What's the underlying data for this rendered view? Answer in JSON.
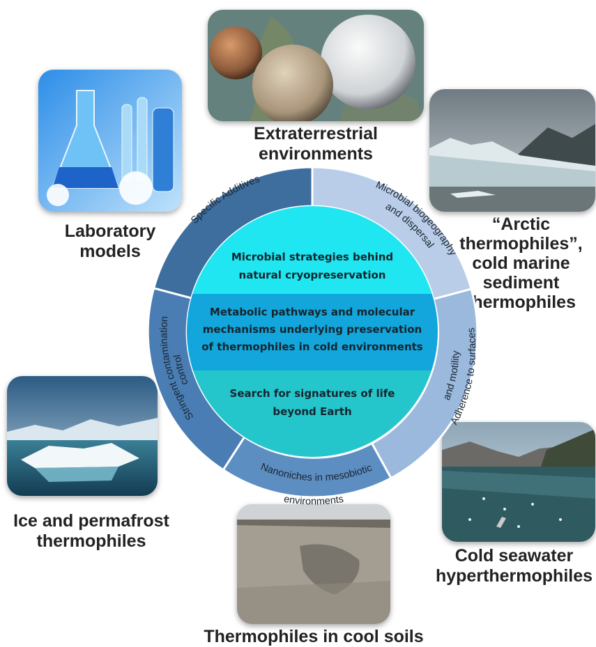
{
  "captions": {
    "extraterrestrial": [
      "Extraterrestrial",
      "environments"
    ],
    "laboratory": [
      "Laboratory",
      "models"
    ],
    "arctic": [
      "“Arctic",
      "thermophiles”,",
      "cold marine",
      "sediment",
      "thermophiles"
    ],
    "ice": [
      "Ice and permafrost",
      "thermophiles"
    ],
    "seawater": [
      "Cold seawater",
      "hyperthermophiles"
    ],
    "soils": [
      "Thermophiles in cool soils"
    ]
  },
  "ring_segments": {
    "specific_additives": [
      "Specific Additives"
    ],
    "biogeography": [
      "Microbial biogeography",
      "and dispersal"
    ],
    "adherence": [
      "Adherence to surfaces",
      "and motility"
    ],
    "nanoniches": [
      "Nanoniches in mesobiotic",
      "environments"
    ],
    "contamination": [
      "Stringent contamination",
      "control"
    ]
  },
  "core_bands": {
    "top": [
      "Microbial strategies behind",
      "natural cryopreservation"
    ],
    "middle": [
      "Metabolic pathways and molecular",
      "mechanisms underlying preservation",
      "of thermophiles in cold environments"
    ],
    "bottom": [
      "Search for signatures of life",
      "beyond Earth"
    ]
  },
  "colors": {
    "ring_dark": "#3d6e9e",
    "ring_medium": "#5c8ec2",
    "ring_light": "#9ab9dd",
    "ring_pale": "#b9cde8",
    "core_top": "#1fe6f0",
    "core_middle": "#12a6dc",
    "core_bottom": "#24c6cc"
  }
}
